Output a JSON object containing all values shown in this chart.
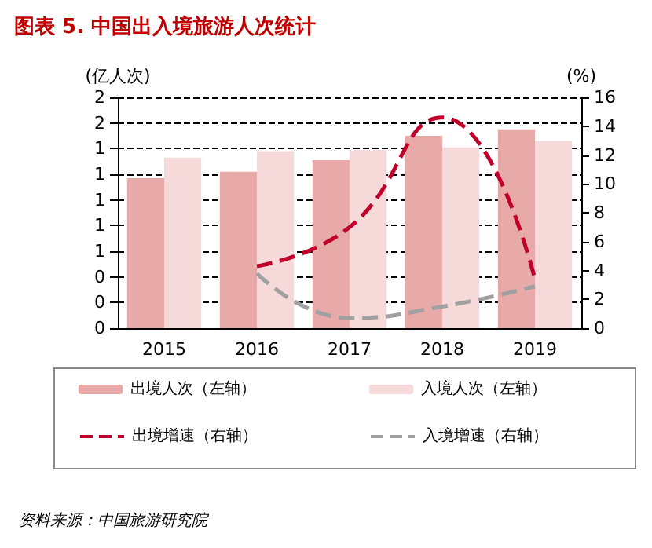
{
  "chart_data": {
    "type": "bar",
    "title": "图表 5. 中国出入境旅游人次统计",
    "categories": [
      "2015",
      "2016",
      "2017",
      "2018",
      "2019"
    ],
    "ylabel": "(亿人次)",
    "y2label": "(%)",
    "ylim": [
      0,
      1.8
    ],
    "yticks": [
      0,
      {
        "value": 0.2,
        "label": "0"
      },
      {
        "value": 0.4,
        "label": "0"
      },
      {
        "value": 0.6,
        "label": "1"
      },
      {
        "value": 0.8,
        "label": "1"
      },
      {
        "value": 1.0,
        "label": "1"
      },
      {
        "value": 1.2,
        "label": "1"
      },
      {
        "value": 1.4,
        "label": "1"
      },
      {
        "value": 1.6,
        "label": "2"
      },
      {
        "value": 1.8,
        "label": "2"
      }
    ],
    "y2lim": [
      0,
      16
    ],
    "y2ticks": [
      0,
      2,
      4,
      6,
      8,
      10,
      12,
      14,
      16
    ],
    "series": [
      {
        "name": "出境人次（左轴）",
        "color": "#e8a9a9",
        "values": [
          1.17,
          1.22,
          1.31,
          1.5,
          1.55
        ]
      },
      {
        "name": "入境人次（左轴）",
        "color": "#f6d9d9",
        "values": [
          1.33,
          1.38,
          1.39,
          1.41,
          1.46
        ]
      },
      {
        "name": "出境增速（右轴）",
        "type": "line",
        "axis": "y2",
        "color": "#c0002a",
        "line_style": "dashed",
        "values": [
          null,
          4.3,
          7.0,
          14.6,
          3.4
        ]
      },
      {
        "name": "入境增速（右轴）",
        "type": "line",
        "axis": "y2",
        "color": "#a0a0a0",
        "line_style": "dashed",
        "values": [
          null,
          3.8,
          0.7,
          1.5,
          2.9
        ]
      }
    ],
    "grid": "y",
    "marker": "none",
    "legend": "bottom",
    "annotations": [
      "资料来源：中国旅游研究院"
    ]
  }
}
